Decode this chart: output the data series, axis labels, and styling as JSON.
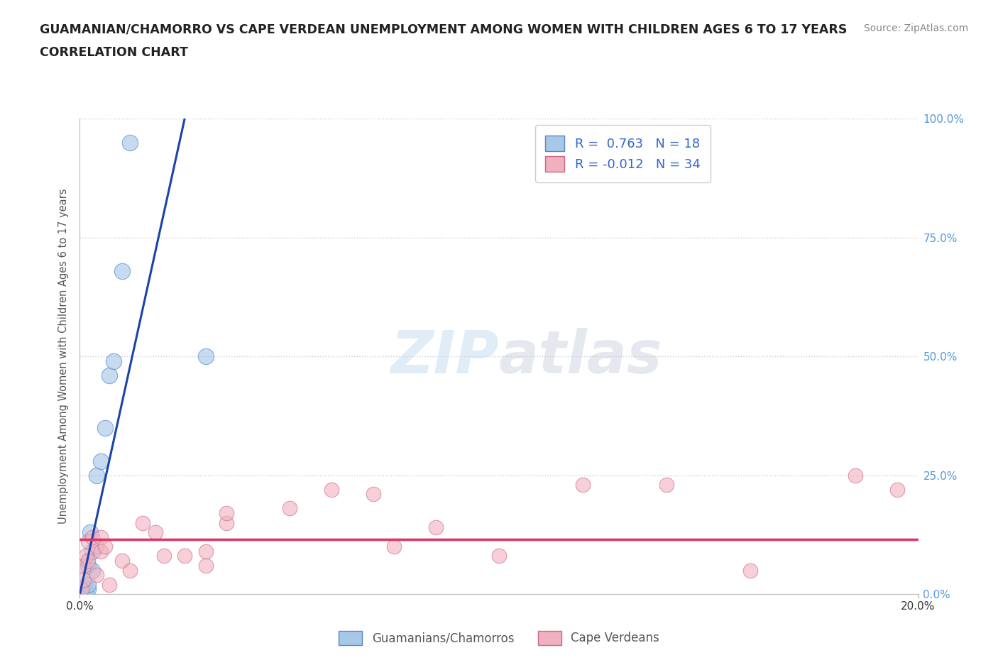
{
  "title_line1": "GUAMANIAN/CHAMORRO VS CAPE VERDEAN UNEMPLOYMENT AMONG WOMEN WITH CHILDREN AGES 6 TO 17 YEARS",
  "title_line2": "CORRELATION CHART",
  "source_text": "Source: ZipAtlas.com",
  "xlim": [
    0.0,
    0.2
  ],
  "ylim": [
    0.0,
    1.0
  ],
  "blue_x": [
    0.0005,
    0.001,
    0.001,
    0.0015,
    0.002,
    0.002,
    0.002,
    0.0025,
    0.003,
    0.003,
    0.004,
    0.005,
    0.006,
    0.007,
    0.008,
    0.01,
    0.012,
    0.03
  ],
  "blue_y": [
    0.005,
    0.005,
    0.015,
    0.005,
    0.01,
    0.02,
    0.06,
    0.13,
    0.05,
    0.09,
    0.25,
    0.28,
    0.35,
    0.46,
    0.49,
    0.68,
    0.95,
    0.5
  ],
  "pink_x": [
    0.0005,
    0.001,
    0.001,
    0.0015,
    0.002,
    0.002,
    0.003,
    0.004,
    0.004,
    0.005,
    0.005,
    0.006,
    0.007,
    0.01,
    0.012,
    0.015,
    0.018,
    0.02,
    0.025,
    0.03,
    0.03,
    0.035,
    0.035,
    0.05,
    0.06,
    0.07,
    0.075,
    0.085,
    0.1,
    0.12,
    0.14,
    0.16,
    0.185,
    0.195
  ],
  "pink_y": [
    0.01,
    0.03,
    0.06,
    0.08,
    0.07,
    0.11,
    0.12,
    0.04,
    0.1,
    0.12,
    0.09,
    0.1,
    0.02,
    0.07,
    0.05,
    0.15,
    0.13,
    0.08,
    0.08,
    0.06,
    0.09,
    0.15,
    0.17,
    0.18,
    0.22,
    0.21,
    0.1,
    0.14,
    0.08,
    0.23,
    0.23,
    0.05,
    0.25,
    0.22
  ],
  "blue_R": 0.763,
  "blue_N": 18,
  "pink_R": -0.012,
  "pink_N": 34,
  "blue_color": "#a8c8e8",
  "pink_color": "#f0b0be",
  "blue_line_color": "#1a44aa",
  "pink_line_color": "#dd3366",
  "blue_trend_x": [
    0.0,
    0.025
  ],
  "blue_trend_y": [
    0.0,
    1.0
  ],
  "pink_trend_y": 0.115,
  "watermark_zip": "ZIP",
  "watermark_atlas": "atlas",
  "ylabel": "Unemployment Among Women with Children Ages 6 to 17 years",
  "legend_label_blue": "Guamanians/Chamorros",
  "legend_label_pink": "Cape Verdeans",
  "bg_color": "#ffffff",
  "grid_color": "#cccccc",
  "ytick_labels": [
    "0.0%",
    "25.0%",
    "50.0%",
    "75.0%",
    "100.0%"
  ],
  "ytick_vals": [
    0.0,
    0.25,
    0.5,
    0.75,
    1.0
  ]
}
